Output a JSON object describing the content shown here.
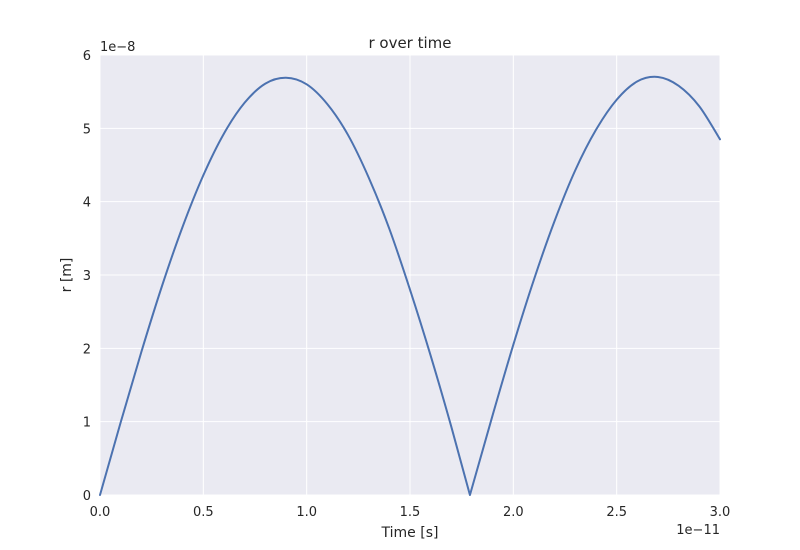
{
  "chart_data": {
    "type": "line",
    "title": "r over time",
    "xlabel": "Time [s]",
    "ylabel": "r [m]",
    "x_offset_label": "1e−11",
    "y_offset_label": "1e−8",
    "xlim": [
      0.0,
      3.0
    ],
    "ylim": [
      0,
      6
    ],
    "x_ticks": [
      "0.0",
      "0.5",
      "1.0",
      "1.5",
      "2.0",
      "2.5",
      "3.0"
    ],
    "y_ticks": [
      "0",
      "1",
      "2",
      "3",
      "4",
      "5",
      "6"
    ],
    "grid": true,
    "background_color": "#eaeaf2",
    "grid_color": "#ffffff",
    "series": [
      {
        "color": "#4c72b0",
        "x": [
          0.0,
          0.1,
          0.2,
          0.3,
          0.4,
          0.5,
          0.6,
          0.7,
          0.8,
          0.9,
          1.0,
          1.1,
          1.2,
          1.3,
          1.4,
          1.5,
          1.6,
          1.7,
          1.79,
          1.9,
          2.0,
          2.1,
          2.2,
          2.3,
          2.4,
          2.5,
          2.6,
          2.7,
          2.8,
          2.9,
          3.0
        ],
        "y": [
          0.0,
          0.99,
          1.95,
          2.85,
          3.66,
          4.36,
          4.93,
          5.35,
          5.61,
          5.69,
          5.6,
          5.33,
          4.91,
          4.33,
          3.63,
          2.8,
          1.9,
          0.93,
          0.0,
          1.09,
          2.05,
          2.94,
          3.74,
          4.43,
          4.98,
          5.39,
          5.64,
          5.7,
          5.58,
          5.3,
          4.85
        ]
      }
    ]
  }
}
